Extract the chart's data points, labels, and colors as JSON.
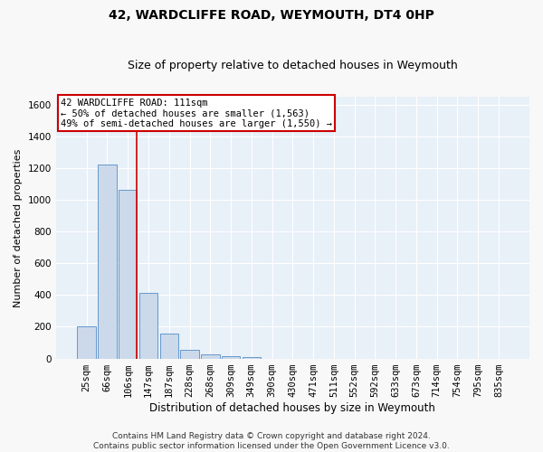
{
  "title": "42, WARDCLIFFE ROAD, WEYMOUTH, DT4 0HP",
  "subtitle": "Size of property relative to detached houses in Weymouth",
  "xlabel": "Distribution of detached houses by size in Weymouth",
  "ylabel": "Number of detached properties",
  "categories": [
    "25sqm",
    "66sqm",
    "106sqm",
    "147sqm",
    "187sqm",
    "228sqm",
    "268sqm",
    "309sqm",
    "349sqm",
    "390sqm",
    "430sqm",
    "471sqm",
    "511sqm",
    "552sqm",
    "592sqm",
    "633sqm",
    "673sqm",
    "714sqm",
    "754sqm",
    "795sqm",
    "835sqm"
  ],
  "values": [
    200,
    1225,
    1065,
    415,
    160,
    55,
    25,
    15,
    10,
    0,
    0,
    0,
    0,
    0,
    0,
    0,
    0,
    0,
    0,
    0,
    0
  ],
  "bar_color": "#ccd9ea",
  "bar_edge_color": "#6699cc",
  "vline_index": 2,
  "annotation_text": "42 WARDCLIFFE ROAD: 111sqm\n← 50% of detached houses are smaller (1,563)\n49% of semi-detached houses are larger (1,550) →",
  "annotation_box_color": "#ffffff",
  "annotation_box_edge": "#cc0000",
  "vline_color": "#cc0000",
  "ylim": [
    0,
    1650
  ],
  "yticks": [
    0,
    200,
    400,
    600,
    800,
    1000,
    1200,
    1400,
    1600
  ],
  "footnote": "Contains HM Land Registry data © Crown copyright and database right 2024.\nContains public sector information licensed under the Open Government Licence v3.0.",
  "plot_bg_color": "#e8f0f8",
  "fig_bg_color": "#f8f8f8",
  "grid_color": "#ffffff",
  "title_fontsize": 10,
  "subtitle_fontsize": 9,
  "xlabel_fontsize": 8.5,
  "ylabel_fontsize": 8,
  "tick_fontsize": 7.5,
  "annotation_fontsize": 7.5,
  "footnote_fontsize": 6.5
}
